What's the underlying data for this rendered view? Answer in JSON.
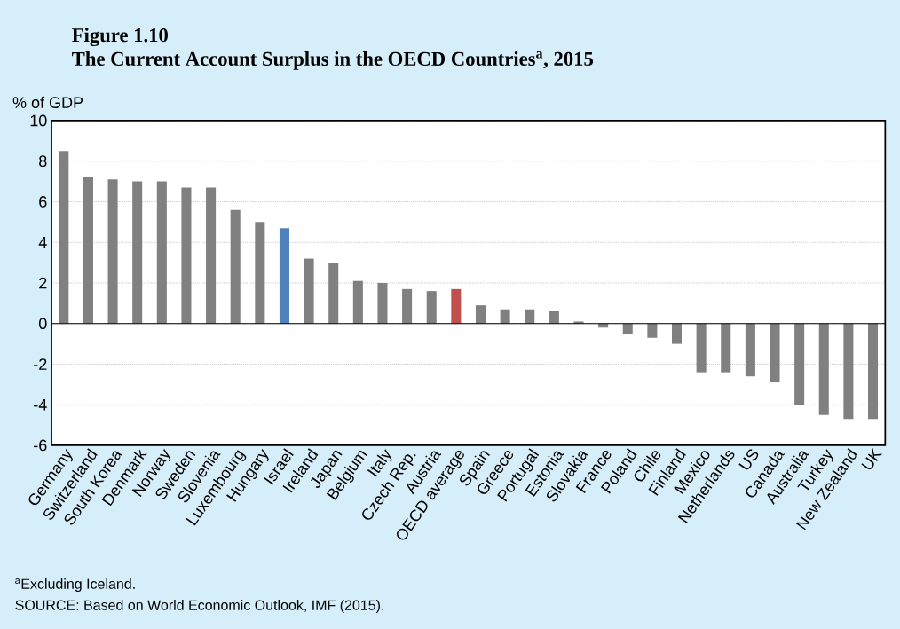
{
  "chart_data": {
    "type": "bar",
    "title": "Figure 1.10",
    "subtitle": "The Current Account Surplus in the OECD Countries$^{a}$, 2015",
    "ylabel": "% of GDP",
    "categories": [
      "Germany",
      "Switzerland",
      "South Korea",
      "Denmark",
      "Norway",
      "Sweden",
      "Slovenia",
      "Luxembourg",
      "Hungary",
      "Israel",
      "Ireland",
      "Japan",
      "Belgium",
      "Italy",
      "Czech Rep.",
      "Austria",
      "OECD average",
      "Spain",
      "Greece",
      "Portugal",
      "Estonia",
      "Slovakia",
      "France",
      "Poland",
      "Chile",
      "Finland",
      "Mexico",
      "Netherlands",
      "US",
      "Canada",
      "Australia",
      "Turkey",
      "New Zealand",
      "UK"
    ],
    "values": [
      8.5,
      7.2,
      7.1,
      7.0,
      7.0,
      6.7,
      6.7,
      5.6,
      5.0,
      4.7,
      3.2,
      3.0,
      2.1,
      2.0,
      1.7,
      1.6,
      1.7,
      0.9,
      0.7,
      0.7,
      0.6,
      0.1,
      -0.2,
      -0.5,
      -0.7,
      -1.0,
      -2.4,
      -2.4,
      -2.6,
      -2.9,
      -4.0,
      -4.5,
      -4.7,
      -4.7
    ],
    "colors": [
      "#808080",
      "#808080",
      "#808080",
      "#808080",
      "#808080",
      "#808080",
      "#808080",
      "#808080",
      "#808080",
      "#4f81bd",
      "#808080",
      "#808080",
      "#808080",
      "#808080",
      "#808080",
      "#808080",
      "#c0504d",
      "#808080",
      "#808080",
      "#808080",
      "#808080",
      "#808080",
      "#808080",
      "#808080",
      "#808080",
      "#808080",
      "#808080",
      "#808080",
      "#808080",
      "#808080",
      "#808080",
      "#808080",
      "#808080",
      "#808080"
    ],
    "ylim": [
      -6,
      10
    ],
    "yticks": [
      -6,
      -4,
      -2,
      0,
      2,
      4,
      6,
      8,
      10
    ],
    "grid": "y",
    "annotations": [
      "$^{a}$Excluding Iceland.",
      "SOURCE: Based on World Economic Outlook, IMF (2015)."
    ]
  }
}
